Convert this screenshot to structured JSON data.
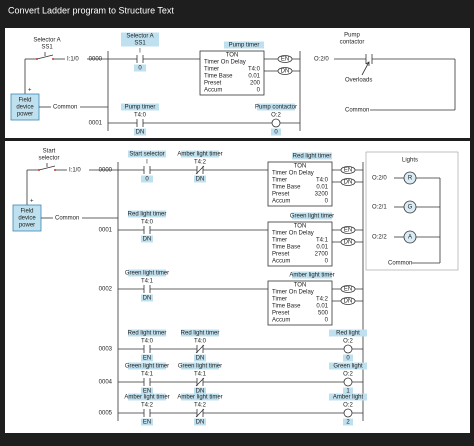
{
  "title": "Convert Ladder program to Structure Text",
  "panels": [
    {
      "input": {
        "name": [
          "Selector A",
          "SS1"
        ],
        "address": "I:1/0",
        "plus": "+",
        "power": [
          "Field",
          "device",
          "power"
        ],
        "common": "Common"
      },
      "rungs": [
        {
          "number": "0000",
          "elements": [
            {
              "kind": "contact",
              "tag": [
                "Selector A",
                "SS1"
              ],
              "address": "I",
              "bit": "0"
            },
            {
              "kind": "timer",
              "tag": "Pump timer",
              "header": "TON",
              "rows": [
                {
                  "label": "Timer On Delay"
                },
                {
                  "label": "Timer",
                  "value": "T4:0"
                },
                {
                  "label": "Time Base",
                  "value": "0.01"
                },
                {
                  "label": "Preset",
                  "value": "200"
                },
                {
                  "label": "Accum",
                  "value": "0"
                }
              ],
              "en": "EN",
              "dn": "DN"
            }
          ]
        },
        {
          "number": "0001",
          "elements": [
            {
              "kind": "contact",
              "tag": [
                "Pump timer"
              ],
              "address": "T4:0",
              "bit": "DN"
            },
            {
              "kind": "coil",
              "tag": "Pump contactor",
              "address": "O:2",
              "bit": "0"
            }
          ]
        }
      ],
      "output": {
        "name": [
          "Pump",
          "contactor"
        ],
        "address": "O:2/0",
        "overloads": "Overloads",
        "common": "Common"
      }
    },
    {
      "input": {
        "name": [
          "Start",
          "selector"
        ],
        "address": "I:1/0",
        "plus": "+",
        "power": [
          "Field",
          "device",
          "power"
        ],
        "common": "Common"
      },
      "rungs": [
        {
          "number": "0000",
          "elements": [
            {
              "kind": "contact",
              "tag": [
                "Start selector"
              ],
              "address": "I",
              "bit": "0"
            },
            {
              "kind": "closed-contact",
              "tag": [
                "Amber light timer"
              ],
              "address": "T4:2",
              "bit": "DN"
            },
            {
              "kind": "timer",
              "tag": "Red light timer",
              "header": "TON",
              "rows": [
                {
                  "label": "Timer On Delay"
                },
                {
                  "label": "Timer",
                  "value": "T4:0"
                },
                {
                  "label": "Time Base",
                  "value": "0.01"
                },
                {
                  "label": "Preset",
                  "value": "3200"
                },
                {
                  "label": "Accum",
                  "value": "0"
                }
              ],
              "en": "EN",
              "dn": "DN"
            }
          ]
        },
        {
          "number": "0001",
          "elements": [
            {
              "kind": "contact",
              "tag": [
                "Red light timer"
              ],
              "address": "T4:0",
              "bit": "DN"
            },
            {
              "kind": "timer",
              "tag": "Green light timer",
              "header": "TON",
              "rows": [
                {
                  "label": "Timer On Delay"
                },
                {
                  "label": "Timer",
                  "value": "T4:1"
                },
                {
                  "label": "Time Base",
                  "value": "0.01"
                },
                {
                  "label": "Preset",
                  "value": "2700"
                },
                {
                  "label": "Accum",
                  "value": "0"
                }
              ],
              "en": "EN",
              "dn": "DN"
            }
          ]
        },
        {
          "number": "0002",
          "elements": [
            {
              "kind": "contact",
              "tag": [
                "Green light timer"
              ],
              "address": "T4:1",
              "bit": "DN"
            },
            {
              "kind": "timer",
              "tag": "Amber light timer",
              "header": "TON",
              "rows": [
                {
                  "label": "Timer On Delay"
                },
                {
                  "label": "Timer",
                  "value": "T4:2"
                },
                {
                  "label": "Time Base",
                  "value": "0.01"
                },
                {
                  "label": "Preset",
                  "value": "500"
                },
                {
                  "label": "Accum",
                  "value": "0"
                }
              ],
              "en": "EN",
              "dn": "DN"
            }
          ]
        },
        {
          "number": "0003",
          "elements": [
            {
              "kind": "contact",
              "tag": [
                "Red light timer"
              ],
              "address": "T4:0",
              "bit": "EN"
            },
            {
              "kind": "closed-contact",
              "tag": [
                "Red light timer"
              ],
              "address": "T4:0",
              "bit": "DN"
            },
            {
              "kind": "coil",
              "tag": "Red light",
              "address": "O:2",
              "bit": "0"
            }
          ]
        },
        {
          "number": "0004",
          "elements": [
            {
              "kind": "contact",
              "tag": [
                "Green light timer"
              ],
              "address": "T4:1",
              "bit": "EN"
            },
            {
              "kind": "closed-contact",
              "tag": [
                "Green light timer"
              ],
              "address": "T4:1",
              "bit": "DN"
            },
            {
              "kind": "coil",
              "tag": "Green light",
              "address": "O:2",
              "bit": "1"
            }
          ]
        },
        {
          "number": "0005",
          "elements": [
            {
              "kind": "contact",
              "tag": [
                "Amber light timer"
              ],
              "address": "T4:2",
              "bit": "EN"
            },
            {
              "kind": "closed-contact",
              "tag": [
                "Amber light timer"
              ],
              "address": "T4:2",
              "bit": "DN"
            },
            {
              "kind": "coil",
              "tag": "Amber light",
              "address": "O:2",
              "bit": "2"
            }
          ]
        }
      ],
      "lights": {
        "name": "Lights",
        "lamps": [
          {
            "address": "O:2/0",
            "letter": "R"
          },
          {
            "address": "O:2/1",
            "letter": "G"
          },
          {
            "address": "O:2/2",
            "letter": "A"
          }
        ],
        "common": "Common"
      }
    }
  ]
}
